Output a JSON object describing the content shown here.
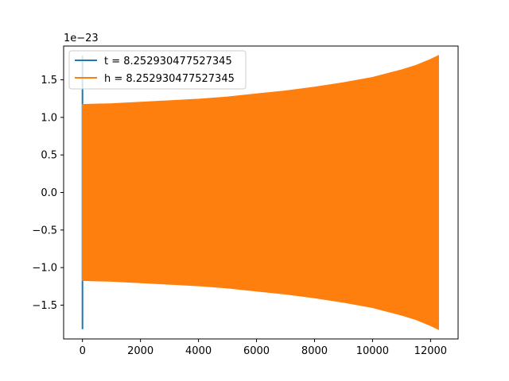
{
  "chart_data": {
    "type": "line",
    "title": "",
    "xlabel": "",
    "ylabel": "",
    "y_offset_label": "1e−23",
    "xlim": [
      -650,
      12950
    ],
    "ylim": [
      -1.95,
      1.95
    ],
    "xticks": [
      0,
      2000,
      4000,
      6000,
      8000,
      10000,
      12000
    ],
    "xtick_labels": [
      "0",
      "2000",
      "4000",
      "6000",
      "8000",
      "10000",
      "12000"
    ],
    "yticks": [
      -1.5,
      -1.0,
      -0.5,
      0.0,
      0.5,
      1.0,
      1.5
    ],
    "ytick_labels": [
      "−1.5",
      "−1.0",
      "−0.5",
      "0.0",
      "0.5",
      "1.0",
      "1.5"
    ],
    "grid": false,
    "legend_position": "top-left",
    "series": [
      {
        "name": "t = 8.252930477527345",
        "color": "#1f77b4",
        "spike": {
          "x": 0,
          "ymin": -1.82,
          "ymax": 1.82
        }
      },
      {
        "name": "h = 8.252930477527345",
        "color": "#ff7f0e",
        "envelope": {
          "x": [
            0,
            1000,
            2000,
            3000,
            4000,
            5000,
            6000,
            7000,
            8000,
            9000,
            10000,
            11000,
            11500,
            12000,
            12270
          ],
          "amplitude": [
            1.17,
            1.18,
            1.2,
            1.22,
            1.24,
            1.27,
            1.31,
            1.35,
            1.4,
            1.46,
            1.53,
            1.63,
            1.69,
            1.77,
            1.82
          ]
        }
      }
    ]
  }
}
